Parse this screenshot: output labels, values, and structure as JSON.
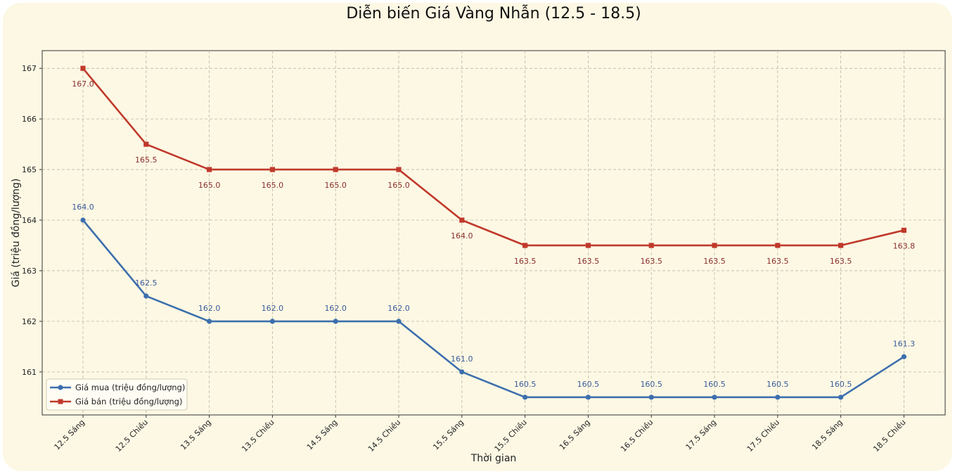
{
  "chart_data": {
    "type": "line",
    "title": "Diễn biến Giá Vàng Nhẫn (12.5 - 18.5)",
    "xlabel": "Thời gian",
    "ylabel": "Giá (triệu đồng/lượng)",
    "categories": [
      "12.5 Sáng",
      "12.5 Chiều",
      "13.5 Sáng",
      "13.5 Chiều",
      "14.5 Sáng",
      "14.5 Chiều",
      "15.5 Sáng",
      "15.5 Chiều",
      "16.5 Sáng",
      "16.5 Chiều",
      "17.5 Sáng",
      "17.5 Chiều",
      "18.5 Sáng",
      "18.5 Chiều"
    ],
    "ylim": [
      160.15,
      167.35
    ],
    "yticks": [
      161,
      162,
      163,
      164,
      165,
      166,
      167
    ],
    "grid": true,
    "legend_position": "lower-left",
    "series": [
      {
        "name": "Giá mua (triệu đồng/lượng)",
        "color": "#3d6fad",
        "marker": "circle",
        "values": [
          164.0,
          162.5,
          162.0,
          162.0,
          162.0,
          162.0,
          161.0,
          160.5,
          160.5,
          160.5,
          160.5,
          160.5,
          160.5,
          161.3
        ],
        "labels": [
          "164.0",
          "162.5",
          "162.0",
          "162.0",
          "162.0",
          "162.0",
          "161.0",
          "160.5",
          "160.5",
          "160.5",
          "160.5",
          "160.5",
          "160.5",
          "161.3"
        ]
      },
      {
        "name": "Giá bán (triệu đồng/lượng)",
        "color": "#c0392b",
        "marker": "square",
        "values": [
          167.0,
          165.5,
          165.0,
          165.0,
          165.0,
          165.0,
          164.0,
          163.5,
          163.5,
          163.5,
          163.5,
          163.5,
          163.5,
          163.8
        ],
        "labels": [
          "167.0",
          "165.5",
          "165.0",
          "165.0",
          "165.0",
          "165.0",
          "164.0",
          "163.5",
          "163.5",
          "163.5",
          "163.5",
          "163.5",
          "163.5",
          "163.8"
        ]
      }
    ]
  }
}
